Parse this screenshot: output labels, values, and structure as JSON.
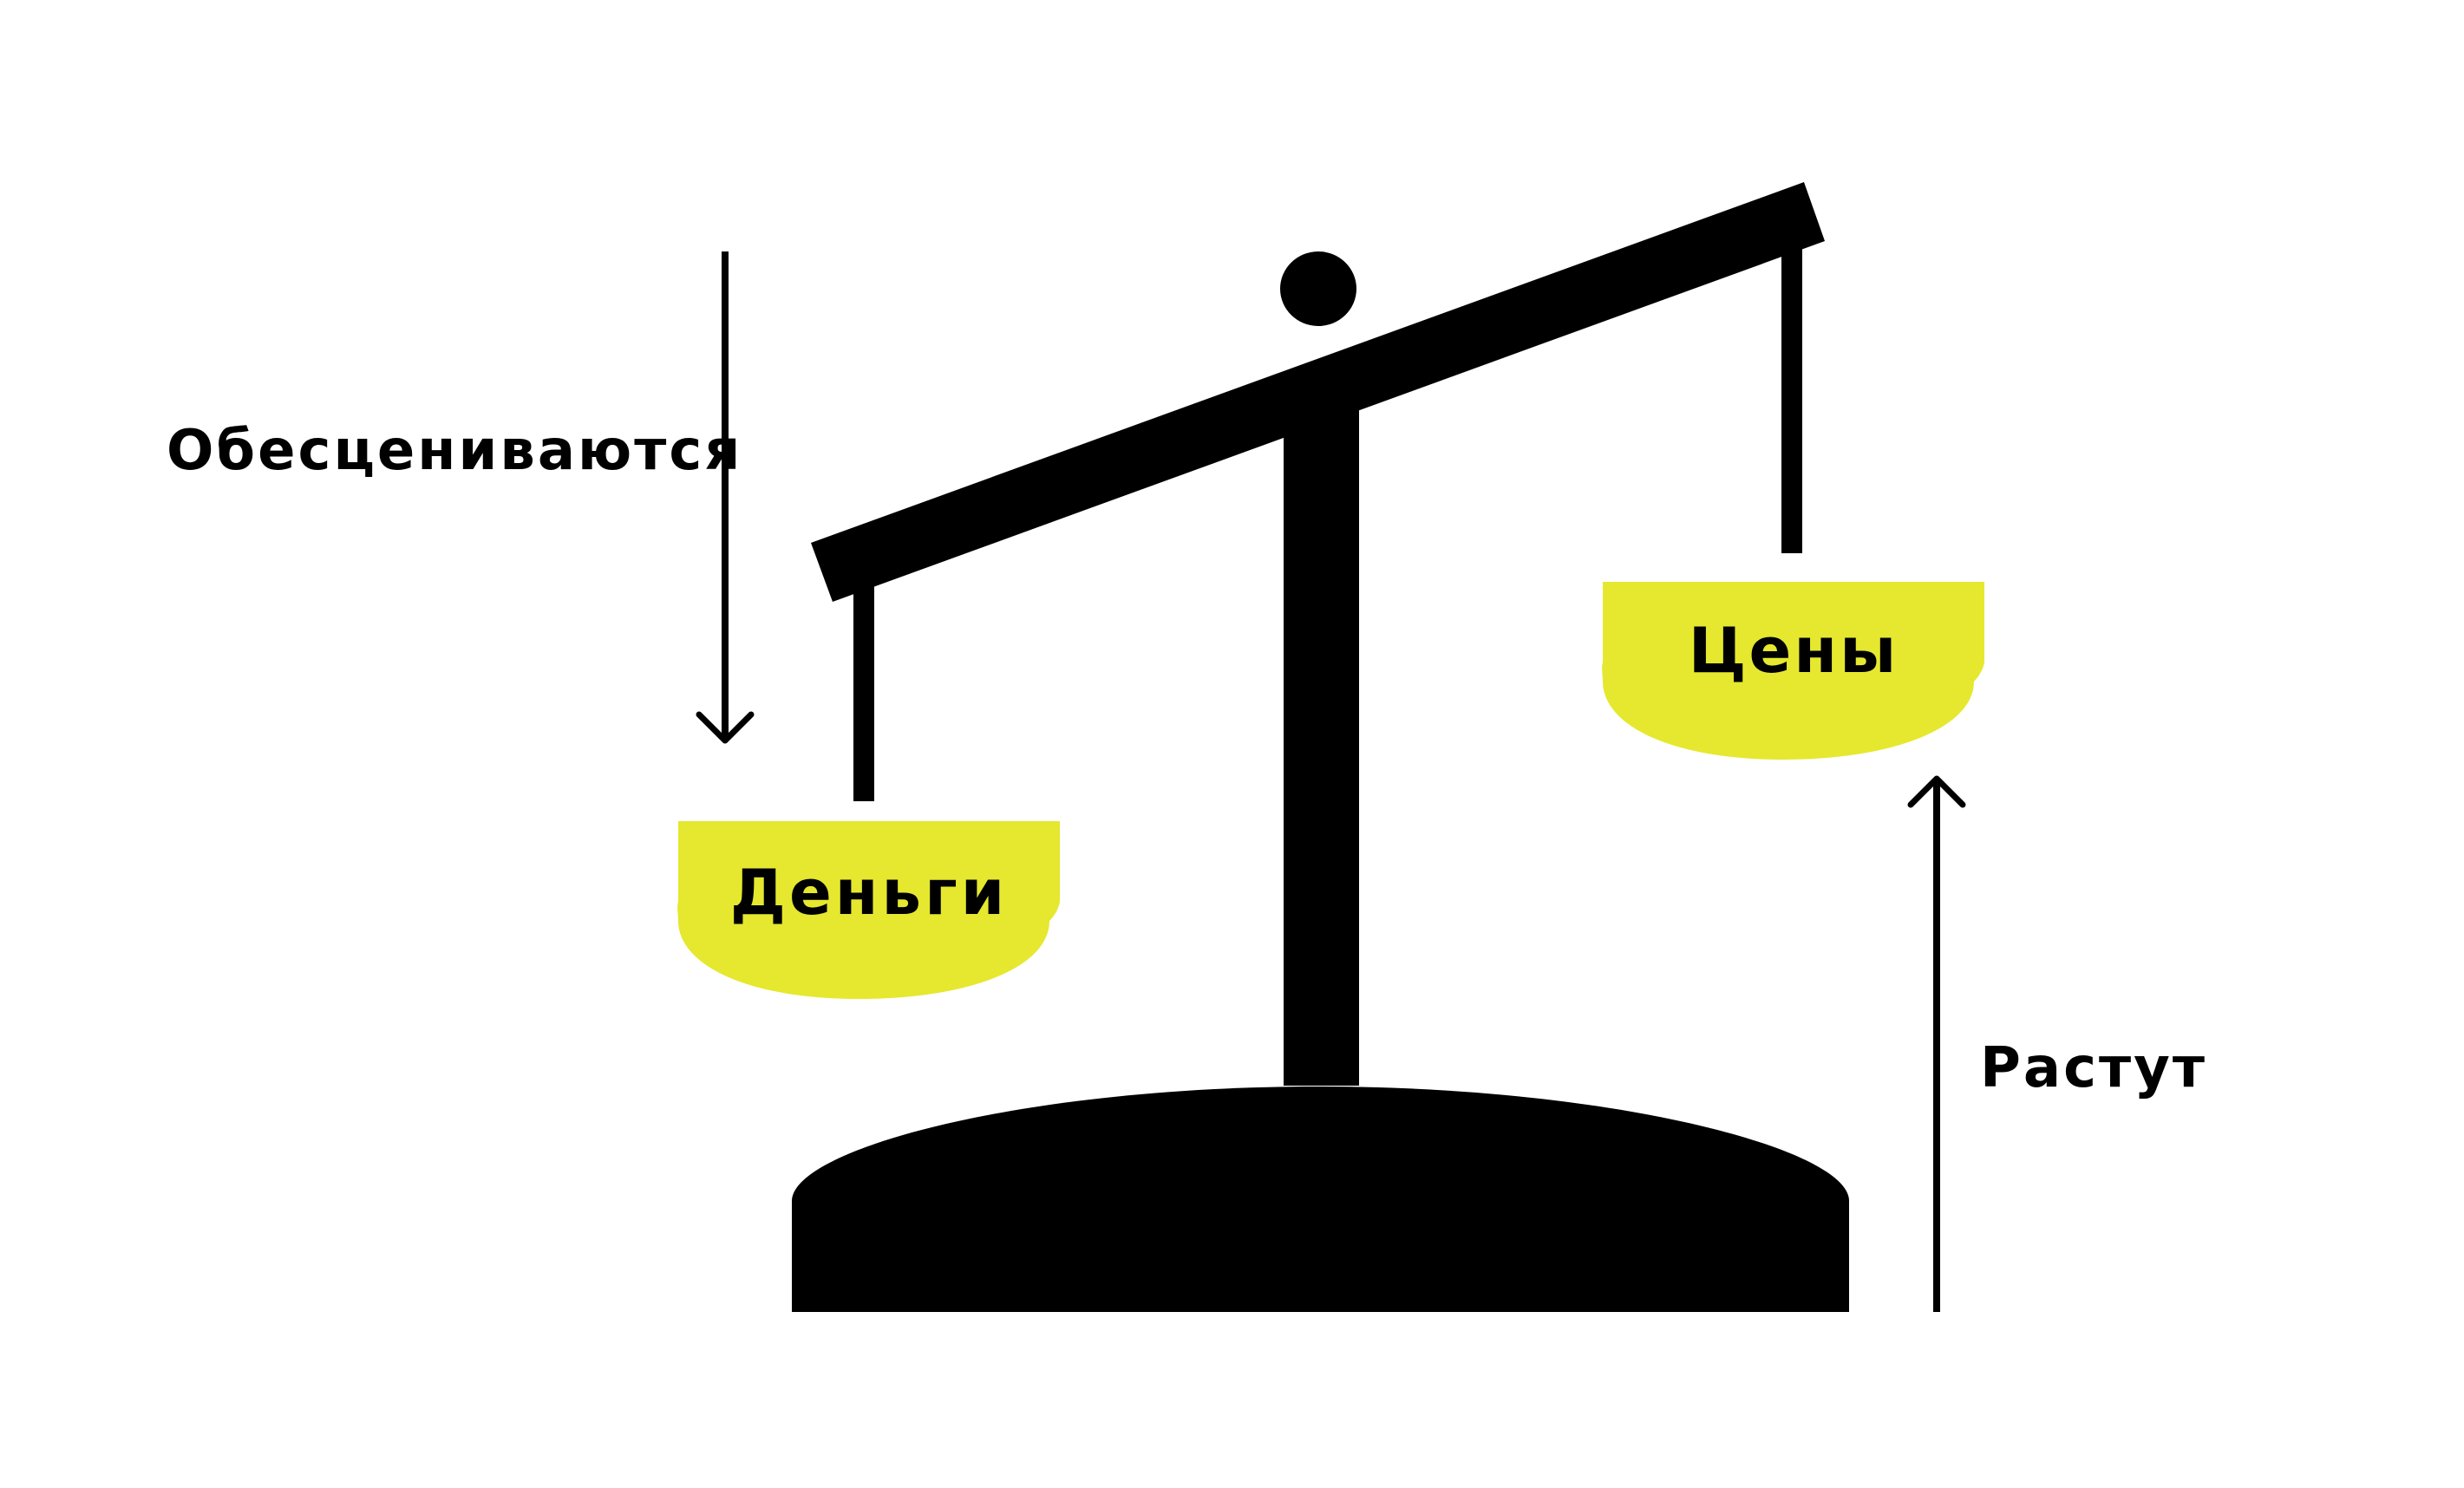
{
  "labels": {
    "devalue": "Обесцениваются",
    "rise": "Растут",
    "money": "Деньги",
    "prices": "Цены"
  },
  "colors": {
    "pan": "#e5e82e",
    "scale": "#000000",
    "background": "#ffffff"
  }
}
